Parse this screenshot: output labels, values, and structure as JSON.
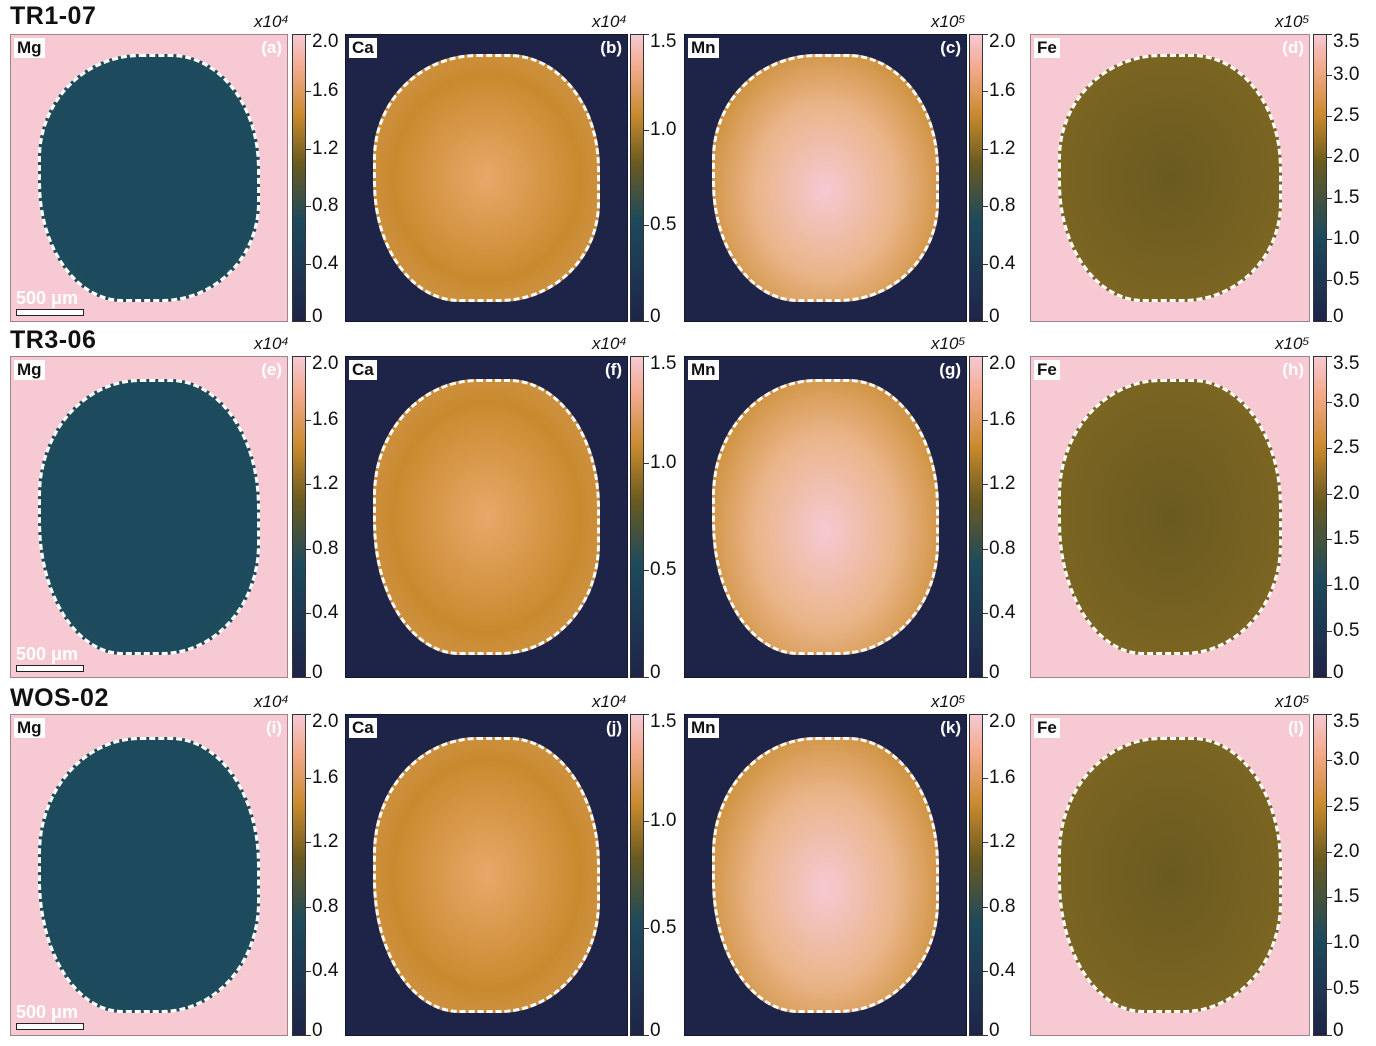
{
  "colors": {
    "navy": "#1e2448",
    "teal": "#1d4a5c",
    "olive": "#6a5a20",
    "orange": "#c98a2e",
    "pink": "#f6c9d3",
    "grain_outline": "#ffffff"
  },
  "scale_bar_label": "500 μm",
  "rows": [
    {
      "title": "TR1-07",
      "panels": [
        {
          "element": "Mg",
          "sub": "(a)",
          "multiplier": "x10⁴",
          "ticks": [
            "2.0",
            "1.6",
            "1.2",
            "0.8",
            "0.4",
            "0"
          ],
          "scale_bar": true
        },
        {
          "element": "Ca",
          "sub": "(b)",
          "multiplier": "x10⁴",
          "ticks": [
            "1.5",
            "1.0",
            "0.5",
            "0"
          ],
          "scale_bar": false
        },
        {
          "element": "Mn",
          "sub": "(c)",
          "multiplier": "x10⁵",
          "ticks": [
            "2.0",
            "1.6",
            "1.2",
            "0.8",
            "0.4",
            "0"
          ],
          "scale_bar": false
        },
        {
          "element": "Fe",
          "sub": "(d)",
          "multiplier": "x10⁵",
          "ticks": [
            "3.5",
            "3.0",
            "2.5",
            "2.0",
            "1.5",
            "1.0",
            "0.5",
            "0"
          ],
          "scale_bar": false
        }
      ]
    },
    {
      "title": "TR3-06",
      "panels": [
        {
          "element": "Mg",
          "sub": "(e)",
          "multiplier": "x10⁴",
          "ticks": [
            "2.0",
            "1.6",
            "1.2",
            "0.8",
            "0.4",
            "0"
          ],
          "scale_bar": true
        },
        {
          "element": "Ca",
          "sub": "(f)",
          "multiplier": "x10⁴",
          "ticks": [
            "1.5",
            "1.0",
            "0.5",
            "0"
          ],
          "scale_bar": false
        },
        {
          "element": "Mn",
          "sub": "(g)",
          "multiplier": "x10⁵",
          "ticks": [
            "2.0",
            "1.6",
            "1.2",
            "0.8",
            "0.4",
            "0"
          ],
          "scale_bar": false
        },
        {
          "element": "Fe",
          "sub": "(h)",
          "multiplier": "x10⁵",
          "ticks": [
            "3.5",
            "3.0",
            "2.5",
            "2.0",
            "1.5",
            "1.0",
            "0.5",
            "0"
          ],
          "scale_bar": false
        }
      ]
    },
    {
      "title": "WOS-02",
      "panels": [
        {
          "element": "Mg",
          "sub": "(i)",
          "multiplier": "x10⁴",
          "ticks": [
            "2.0",
            "1.6",
            "1.2",
            "0.8",
            "0.4",
            "0"
          ],
          "scale_bar": true
        },
        {
          "element": "Ca",
          "sub": "(j)",
          "multiplier": "x10⁴",
          "ticks": [
            "1.5",
            "1.0",
            "0.5",
            "0"
          ],
          "scale_bar": false
        },
        {
          "element": "Mn",
          "sub": "(k)",
          "multiplier": "x10⁵",
          "ticks": [
            "2.0",
            "1.6",
            "1.2",
            "0.8",
            "0.4",
            "0"
          ],
          "scale_bar": false
        },
        {
          "element": "Fe",
          "sub": "(l)",
          "multiplier": "x10⁵",
          "ticks": [
            "3.5",
            "3.0",
            "2.5",
            "2.0",
            "1.5",
            "1.0",
            "0.5",
            "0"
          ],
          "scale_bar": false
        }
      ]
    }
  ]
}
